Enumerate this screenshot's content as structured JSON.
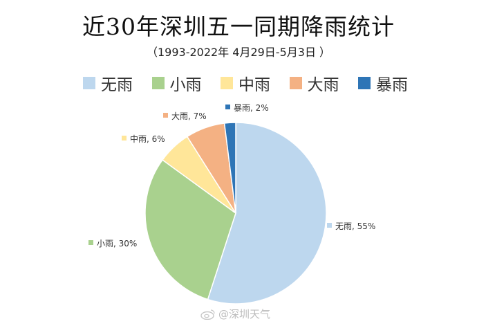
{
  "chart_data": {
    "type": "pie",
    "title": "近30年深圳五一同期降雨统计",
    "subtitle": "（1993-2022年  4月29日-5月3日 ）",
    "categories": [
      "无雨",
      "小雨",
      "中雨",
      "大雨",
      "暴雨"
    ],
    "values": [
      55,
      30,
      6,
      7,
      2
    ],
    "data_labels": [
      "无雨, 55%",
      "小雨, 30%",
      "中雨, 6%",
      "大雨, 7%",
      "暴雨, 2%"
    ],
    "colors": [
      "#bdd7ee",
      "#a9d18e",
      "#ffe699",
      "#f4b183",
      "#2e75b6"
    ],
    "legend_position": "top",
    "start_angle_deg": 0,
    "direction": "clockwise"
  },
  "watermark": {
    "text": "@深圳天气"
  }
}
